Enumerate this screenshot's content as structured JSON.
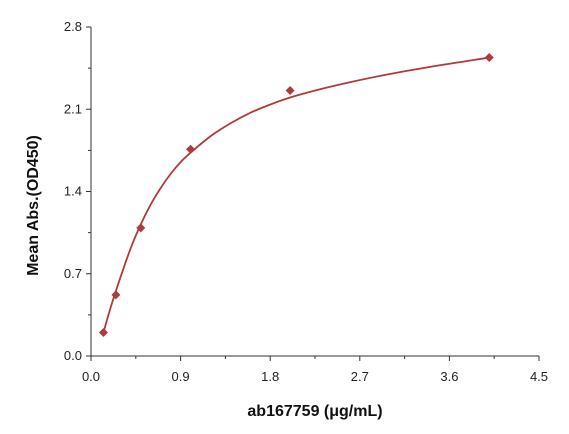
{
  "chart_data": {
    "type": "scatter",
    "title": "",
    "xlabel": "ab167759 (μg/mL)",
    "ylabel": "Mean Abs.(OD450)",
    "xlim": [
      0,
      4.5
    ],
    "ylim": [
      0,
      2.8
    ],
    "x_ticks": [
      "0.0",
      "0.9",
      "1.8",
      "2.7",
      "3.6",
      "4.5"
    ],
    "x_tick_values": [
      0,
      0.9,
      1.8,
      2.7,
      3.6,
      4.5
    ],
    "y_ticks": [
      "0.0",
      "0.7",
      "1.4",
      "2.1",
      "2.8"
    ],
    "y_tick_values": [
      0,
      0.7,
      1.4,
      2.1,
      2.8
    ],
    "grid": false,
    "legend": "none",
    "color": "#b03a3a",
    "series": [
      {
        "points": [
          {
            "x": 0.125,
            "y": 0.2
          },
          {
            "x": 0.25,
            "y": 0.52
          },
          {
            "x": 0.5,
            "y": 1.09
          },
          {
            "x": 1.0,
            "y": 1.76
          },
          {
            "x": 2.0,
            "y": 2.26
          },
          {
            "x": 4.0,
            "y": 2.54
          }
        ],
        "fit_curve": {
          "x": [
            0.125,
            0.2,
            0.3,
            0.4,
            0.5,
            0.6,
            0.7,
            0.8,
            0.9,
            1.0,
            1.2,
            1.4,
            1.6,
            1.8,
            2.0,
            2.3,
            2.6,
            3.0,
            3.4,
            3.7,
            4.0
          ],
          "y": [
            0.2,
            0.42,
            0.68,
            0.92,
            1.12,
            1.29,
            1.43,
            1.55,
            1.65,
            1.73,
            1.87,
            1.98,
            2.07,
            2.14,
            2.2,
            2.27,
            2.33,
            2.4,
            2.46,
            2.5,
            2.54
          ]
        }
      }
    ]
  }
}
